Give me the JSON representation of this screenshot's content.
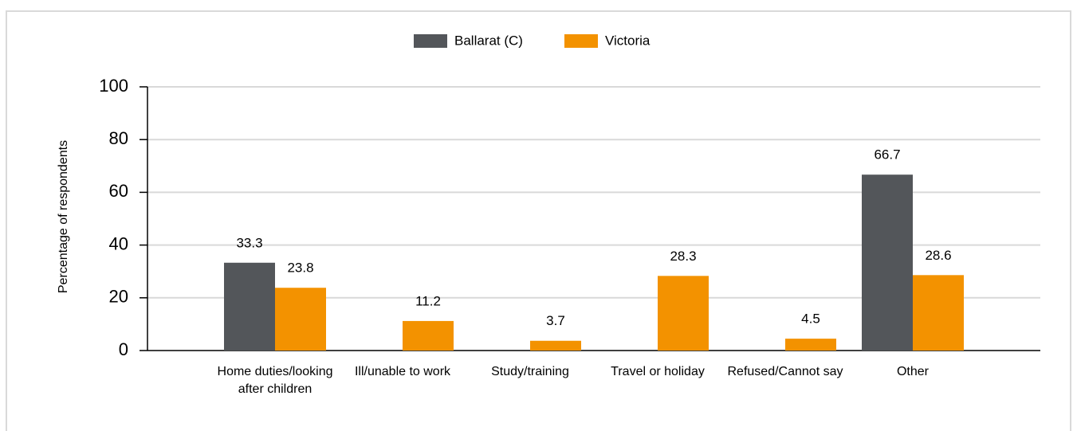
{
  "chart_data": {
    "type": "bar",
    "y_label": "Percentage of respondents",
    "categories": [
      "Home duties/looking after children",
      "Ill/unable to work",
      "Study/training",
      "Travel or holiday",
      "Refused/Cannot say",
      "Other"
    ],
    "series": [
      {
        "name": "Ballarat (C)",
        "color": "#53565a",
        "values": [
          33.3,
          null,
          null,
          null,
          null,
          66.7
        ]
      },
      {
        "name": "Victoria",
        "color": "#f39200",
        "values": [
          23.8,
          11.2,
          3.7,
          28.3,
          4.5,
          28.6
        ]
      }
    ],
    "ylim": [
      0,
      100
    ],
    "yticks": [
      0,
      20,
      40,
      60,
      80,
      100
    ],
    "grid": true,
    "legend": "top"
  }
}
